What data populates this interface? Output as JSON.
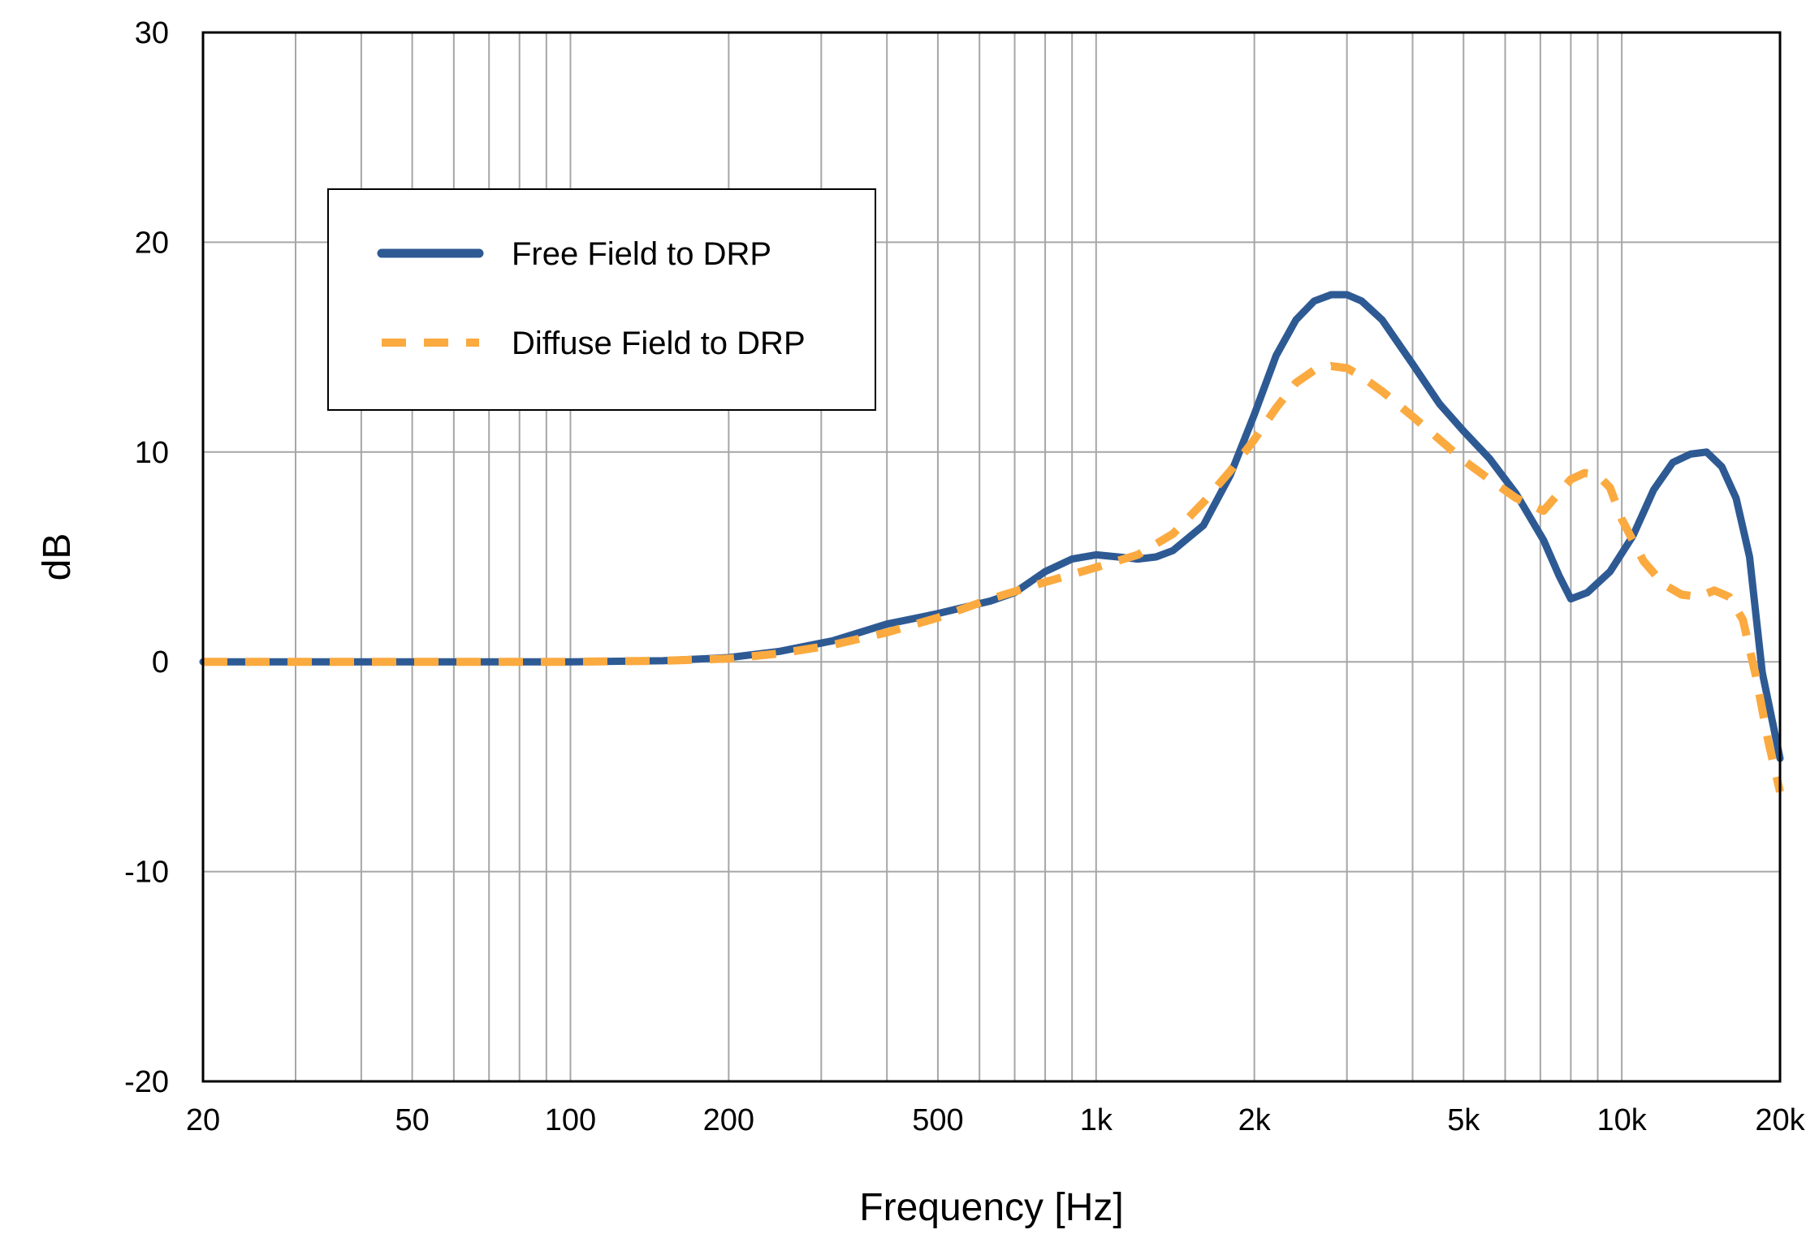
{
  "chart_data": {
    "type": "line",
    "title": "",
    "xlabel": "Frequency [Hz]",
    "ylabel": "dB",
    "xscale": "log",
    "xlim": [
      20,
      20000
    ],
    "ylim": [
      -20,
      30
    ],
    "grid": true,
    "legend_position": "top-left",
    "x_ticks": [
      {
        "value": 20,
        "label": "20"
      },
      {
        "value": 50,
        "label": "50"
      },
      {
        "value": 100,
        "label": "100"
      },
      {
        "value": 200,
        "label": "200"
      },
      {
        "value": 500,
        "label": "500"
      },
      {
        "value": 1000,
        "label": "1k"
      },
      {
        "value": 2000,
        "label": "2k"
      },
      {
        "value": 5000,
        "label": "5k"
      },
      {
        "value": 10000,
        "label": "10k"
      },
      {
        "value": 20000,
        "label": "20k"
      }
    ],
    "y_ticks": [
      {
        "value": 30,
        "label": "30"
      },
      {
        "value": 20,
        "label": "20"
      },
      {
        "value": 10,
        "label": "10"
      },
      {
        "value": 0,
        "label": "0"
      },
      {
        "value": -10,
        "label": "-10"
      },
      {
        "value": -20,
        "label": "-20"
      }
    ],
    "series": [
      {
        "name": "Free Field to DRP",
        "color": "#2e5a94",
        "style": "solid",
        "x": [
          20,
          100,
          150,
          200,
          250,
          315,
          400,
          500,
          630,
          700,
          800,
          900,
          1000,
          1100,
          1200,
          1300,
          1400,
          1600,
          1800,
          2000,
          2200,
          2400,
          2600,
          2800,
          3000,
          3200,
          3500,
          4000,
          4500,
          5000,
          5600,
          6300,
          7100,
          7600,
          8000,
          8600,
          9500,
          10500,
          11500,
          12500,
          13500,
          14500,
          15500,
          16500,
          17500,
          18500,
          20000
        ],
        "y": [
          0,
          0,
          0.05,
          0.2,
          0.5,
          1.0,
          1.8,
          2.3,
          2.9,
          3.3,
          4.3,
          4.9,
          5.1,
          5.0,
          4.9,
          5.0,
          5.3,
          6.5,
          8.9,
          11.8,
          14.6,
          16.3,
          17.2,
          17.5,
          17.5,
          17.2,
          16.3,
          14.2,
          12.3,
          11.0,
          9.7,
          8.0,
          5.8,
          4.1,
          3.0,
          3.3,
          4.3,
          6.0,
          8.2,
          9.5,
          9.9,
          10.0,
          9.3,
          7.8,
          5.0,
          -0.5,
          -4.6
        ]
      },
      {
        "name": "Diffuse Field to DRP",
        "color": "#fbaa40",
        "style": "dashed",
        "x": [
          20,
          100,
          150,
          200,
          250,
          315,
          400,
          500,
          630,
          800,
          1000,
          1200,
          1400,
          1600,
          1800,
          2000,
          2200,
          2400,
          2600,
          2800,
          3000,
          3200,
          3500,
          4000,
          4500,
          5000,
          5600,
          6300,
          7100,
          8000,
          8500,
          9000,
          9500,
          10000,
          11000,
          12000,
          13000,
          14000,
          15000,
          16000,
          17000,
          18000,
          19000,
          20000
        ],
        "y": [
          0,
          0,
          0.05,
          0.15,
          0.4,
          0.8,
          1.4,
          2.1,
          3.0,
          3.8,
          4.5,
          5.1,
          6.1,
          7.6,
          9.1,
          10.6,
          12.1,
          13.3,
          13.9,
          14.1,
          14.0,
          13.6,
          12.9,
          11.7,
          10.6,
          9.6,
          8.7,
          7.8,
          7.2,
          8.7,
          9.0,
          8.9,
          8.3,
          6.8,
          4.8,
          3.7,
          3.2,
          3.1,
          3.4,
          3.1,
          2.0,
          -0.7,
          -3.8,
          -6.2
        ]
      }
    ]
  }
}
